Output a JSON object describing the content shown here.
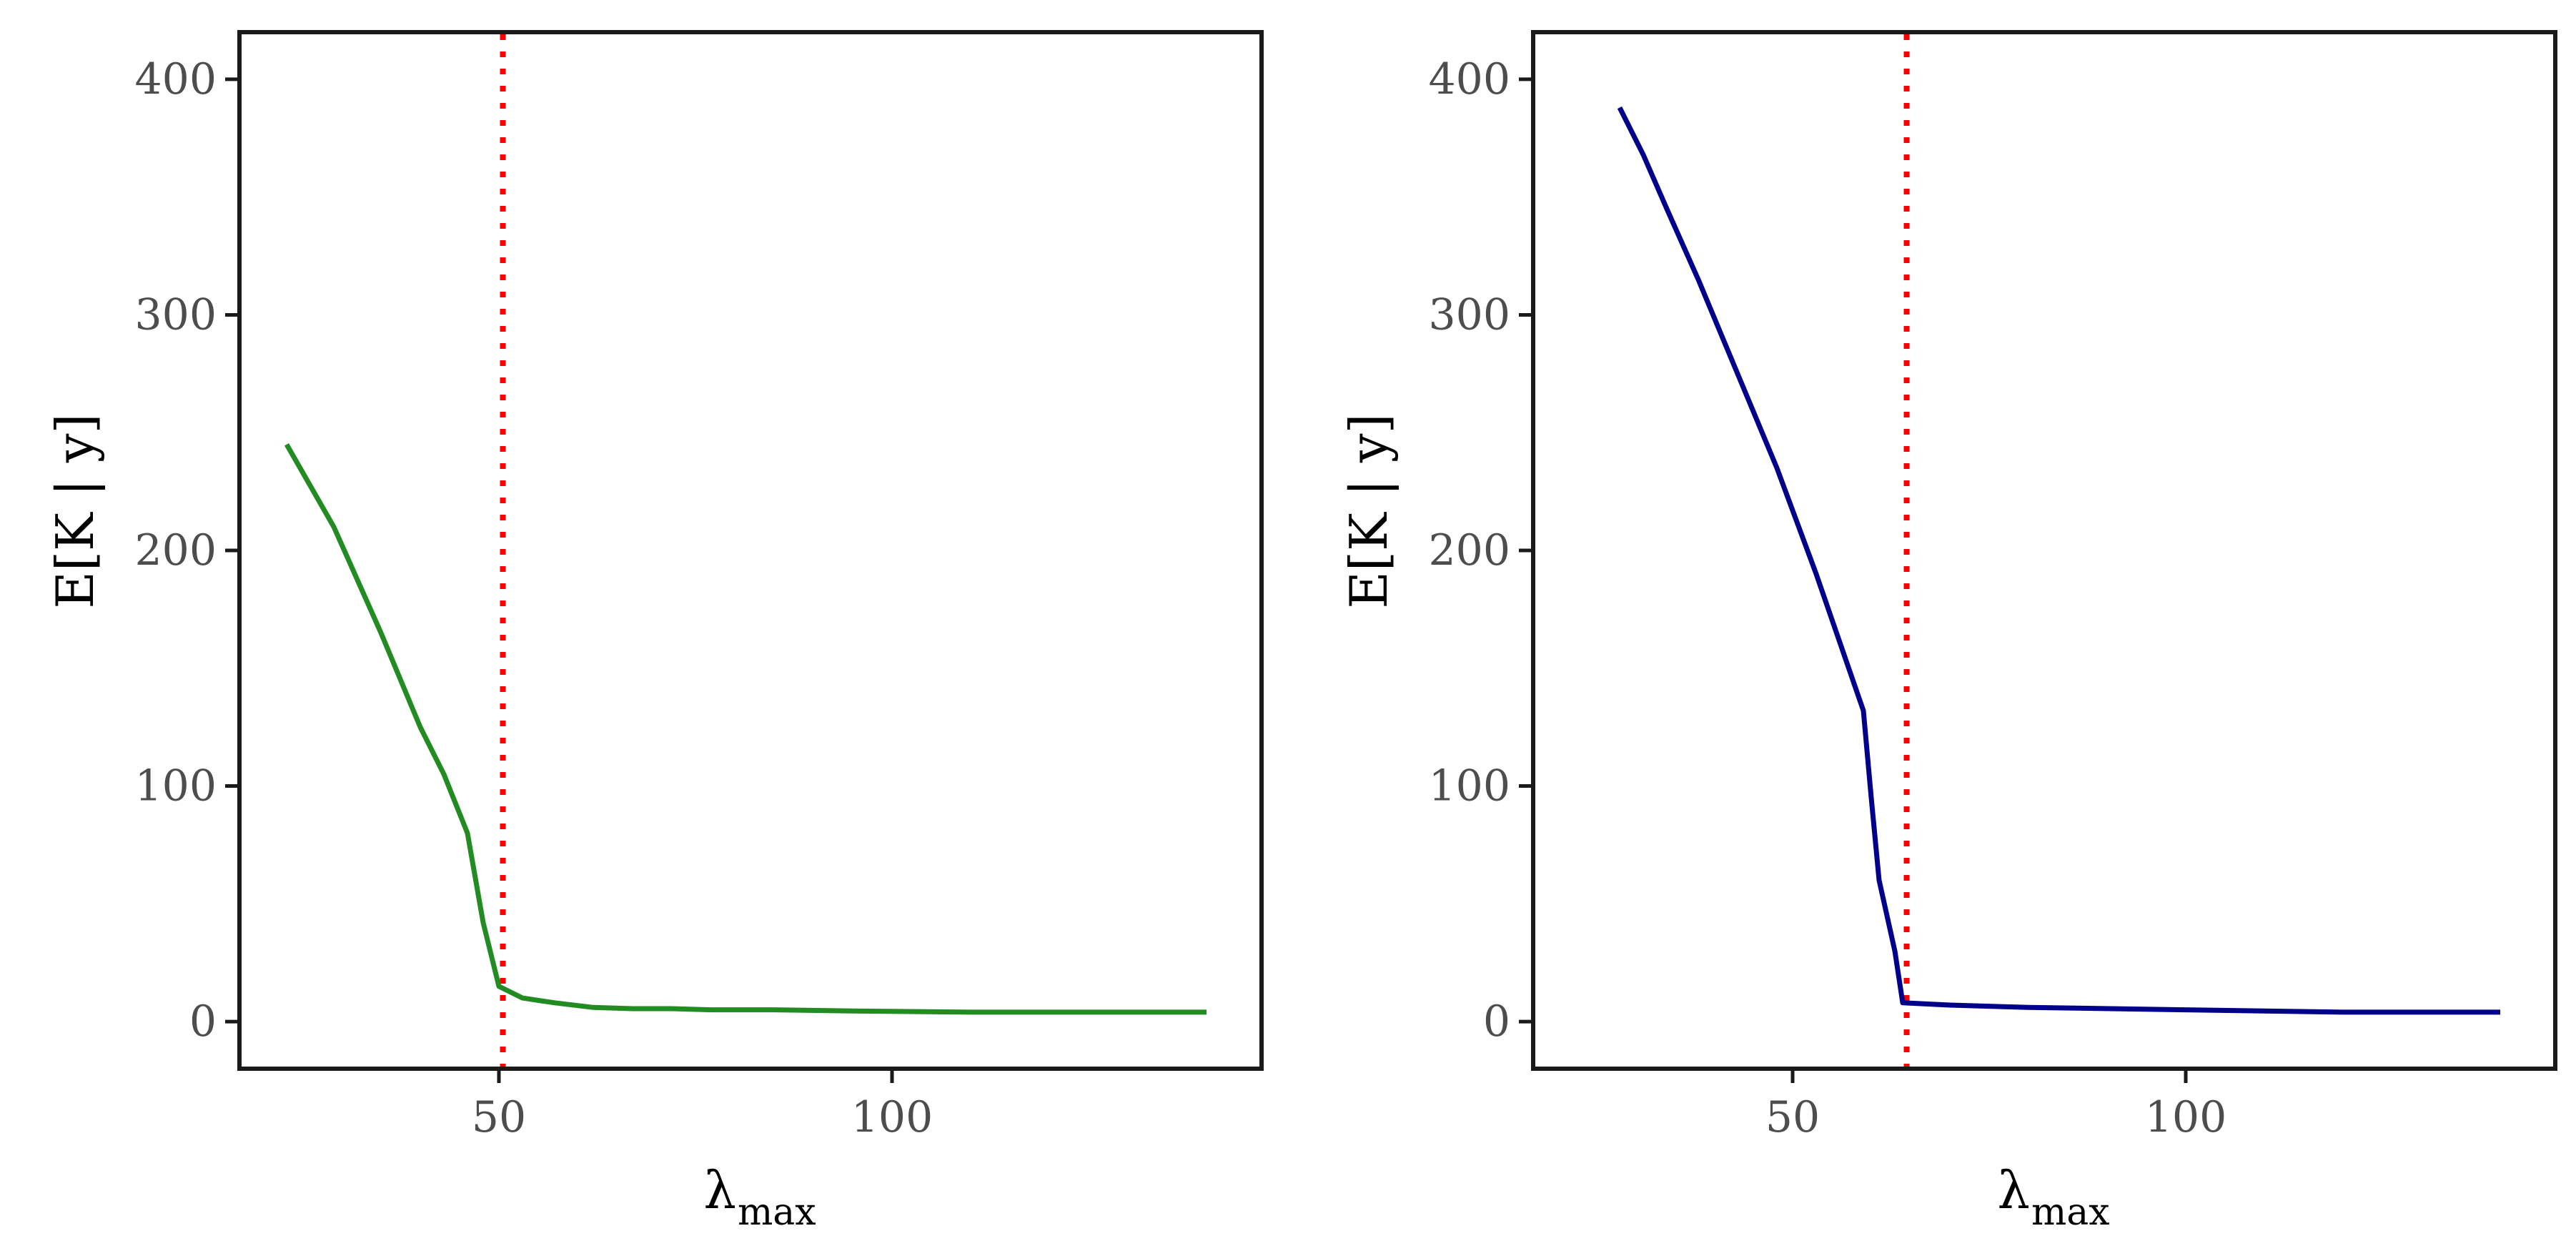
{
  "chart_data": [
    {
      "type": "line",
      "xlabel": "λ",
      "xlabel_sub": "max",
      "ylabel": "E[K | y]",
      "xlim": [
        17,
        147
      ],
      "ylim": [
        -20,
        420
      ],
      "xticks": [
        50,
        100
      ],
      "yticks": [
        0,
        100,
        200,
        300,
        400
      ],
      "grid": false,
      "series": [
        {
          "color": "#228B22",
          "x": [
            23,
            29,
            35,
            40,
            43,
            46,
            48,
            50,
            53,
            57,
            62,
            67,
            72,
            77,
            85,
            95,
            110,
            125,
            140
          ],
          "y": [
            245,
            210,
            165,
            125,
            105,
            80,
            42,
            15,
            10,
            8,
            6,
            5.5,
            5.5,
            5,
            5,
            4.5,
            4,
            4,
            4
          ]
        }
      ],
      "threshold": {
        "x": 50.5,
        "color": "#ff0000",
        "style": "dotted"
      }
    },
    {
      "type": "line",
      "xlabel": "λ",
      "xlabel_sub": "max",
      "ylabel": "E[K | y]",
      "xlim": [
        17,
        147
      ],
      "ylim": [
        -20,
        420
      ],
      "xticks": [
        50,
        100
      ],
      "yticks": [
        0,
        100,
        200,
        300,
        400
      ],
      "grid": false,
      "series": [
        {
          "color": "#00008B",
          "x": [
            28,
            31,
            34,
            38,
            43,
            48,
            53,
            59,
            60,
            61,
            63,
            64,
            70,
            80,
            100,
            120,
            140
          ],
          "y": [
            388,
            368,
            345,
            315,
            275,
            235,
            190,
            132,
            95,
            60,
            30,
            8,
            7,
            6,
            5,
            4,
            4
          ]
        }
      ],
      "threshold": {
        "x": 64.5,
        "color": "#ff0000",
        "style": "dotted"
      }
    }
  ]
}
